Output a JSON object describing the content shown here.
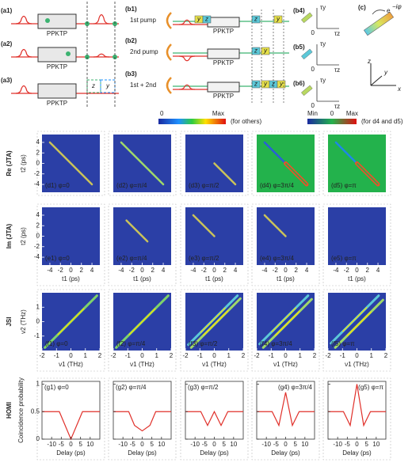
{
  "schematic": {
    "a": {
      "labels": [
        "(a1)",
        "(a2)",
        "(a3)"
      ],
      "crystal": [
        "PPKTP",
        "PPKTP",
        "PPKTP"
      ],
      "z": "z",
      "y": "y"
    },
    "b": {
      "labels": [
        "(b1)",
        "(b2)",
        "(b3)"
      ],
      "pumps": [
        "1st pump",
        "2nd pump",
        "1st + 2nd"
      ],
      "crystal": [
        "PPKTP",
        "PPKTP",
        "PPKTP"
      ],
      "tags": [
        [
          "y",
          "z",
          "z",
          "y"
        ],
        [
          "z",
          "y"
        ],
        [
          "z",
          "y",
          "z",
          "y"
        ]
      ]
    },
    "b_axes": {
      "labels": [
        "(b4)",
        "(b5)",
        "(b6)"
      ],
      "y_axis": "τy",
      "x_axis": "τz",
      "origin": "0"
    },
    "c": {
      "label": "(c)",
      "phase_base": "e",
      "phase_exp": "−iφ",
      "axes": [
        "z",
        "y",
        "x"
      ]
    }
  },
  "colorbars": [
    {
      "min": "0",
      "max": "Max",
      "note": "(for others)"
    },
    {
      "min": "Min",
      "zero": "0",
      "max": "Max",
      "note": "(for d4 and d5)"
    }
  ],
  "maps": [
    {
      "row_label": "Re (JTA)",
      "ylabel": "t2 (ps)",
      "xlim": [
        -5.5,
        5.5
      ],
      "ylim": [
        -5.5,
        5.5
      ],
      "yticks": [
        -4,
        -2,
        0,
        2,
        4
      ],
      "panels": [
        "(d1) φ=0",
        "(d2) φ=π/4",
        "(d3) φ=π/2",
        "(d4) φ=3π/4",
        "(d5) φ=π"
      ]
    },
    {
      "row_label": "Im (JTA)",
      "ylabel": "t2 (ps)",
      "xlabel": "t1 (ps)",
      "xlim": [
        -5.5,
        5.5
      ],
      "ylim": [
        -5.5,
        5.5
      ],
      "xticks": [
        -4,
        -2,
        0,
        2,
        4
      ],
      "yticks": [
        -4,
        -2,
        0,
        2,
        4
      ],
      "panels": [
        "(e1) φ=0",
        "(e2) φ=π/4",
        "(e3) φ=π/2",
        "(e4) φ=3π/4",
        "(e5) φ=π"
      ]
    },
    {
      "row_label": "JSI",
      "ylabel": "ν2 (THz)",
      "xlabel": "ν1 (THz)",
      "xlim": [
        -2,
        2
      ],
      "ylim": [
        -2,
        2
      ],
      "xticks": [
        -2,
        -1,
        0,
        1,
        2
      ],
      "yticks": [
        -1,
        0,
        1
      ],
      "panels": [
        "(f1) φ=0",
        "(f2) φ=π/4",
        "(f3) φ=π/2",
        "(f4) φ=3π/4",
        "(f5) φ=π"
      ]
    }
  ],
  "homi_row_label": "HOMI",
  "chart_data": [
    {
      "type": "line",
      "title": "(g1) φ=0",
      "ylabel": "Coincidence probability",
      "xlabel": "Delay (ps)",
      "color": "#e0302a",
      "x": [
        -15,
        -6,
        0,
        6,
        15
      ],
      "values": [
        0.5,
        0.5,
        0,
        0.5,
        0.5
      ],
      "xlim": [
        -15,
        15
      ],
      "ylim": [
        0,
        1.05
      ],
      "xticks": [
        -10,
        -5,
        0,
        5,
        10
      ],
      "yticks": [
        0,
        0.5,
        1
      ]
    },
    {
      "type": "line",
      "title": "(g2) φ=π/4",
      "xlabel": "Delay (ps)",
      "color": "#e0302a",
      "x": [
        -15,
        -7,
        -4,
        0,
        4,
        7,
        15
      ],
      "values": [
        0.5,
        0.5,
        0.25,
        0.15,
        0.25,
        0.5,
        0.5
      ],
      "xlim": [
        -15,
        15
      ],
      "ylim": [
        0,
        1.05
      ],
      "xticks": [
        -10,
        -5,
        0,
        5,
        10
      ],
      "yticks": [
        0,
        0.5,
        1
      ]
    },
    {
      "type": "line",
      "title": "(g3) φ=π/2",
      "xlabel": "Delay (ps)",
      "color": "#e0302a",
      "x": [
        -15,
        -7,
        -3.5,
        0,
        3.5,
        7,
        15
      ],
      "values": [
        0.5,
        0.5,
        0.25,
        0.5,
        0.25,
        0.5,
        0.5
      ],
      "xlim": [
        -15,
        15
      ],
      "ylim": [
        0,
        1.05
      ],
      "xticks": [
        -10,
        -5,
        0,
        5,
        10
      ],
      "yticks": [
        0,
        0.5,
        1
      ]
    },
    {
      "type": "line",
      "title": "(g4) φ=3π/4",
      "xlabel": "Delay (ps)",
      "color": "#e0302a",
      "x": [
        -15,
        -7,
        -3.5,
        0,
        3.5,
        7,
        15
      ],
      "values": [
        0.5,
        0.5,
        0.25,
        0.85,
        0.25,
        0.5,
        0.5
      ],
      "xlim": [
        -15,
        15
      ],
      "ylim": [
        0,
        1.05
      ],
      "xticks": [
        -10,
        -5,
        0,
        5,
        10
      ],
      "yticks": [
        0,
        0.5,
        1
      ]
    },
    {
      "type": "line",
      "title": "(g5) φ=π",
      "xlabel": "Delay (ps)",
      "color": "#e0302a",
      "x": [
        -15,
        -7,
        -3.5,
        0,
        3.5,
        7,
        15
      ],
      "values": [
        0.5,
        0.5,
        0.25,
        1,
        0.25,
        0.5,
        0.5
      ],
      "xlim": [
        -15,
        15
      ],
      "ylim": [
        0,
        1.05
      ],
      "xticks": [
        -10,
        -5,
        0,
        5,
        10
      ],
      "yticks": [
        0,
        0.5,
        1
      ]
    }
  ]
}
